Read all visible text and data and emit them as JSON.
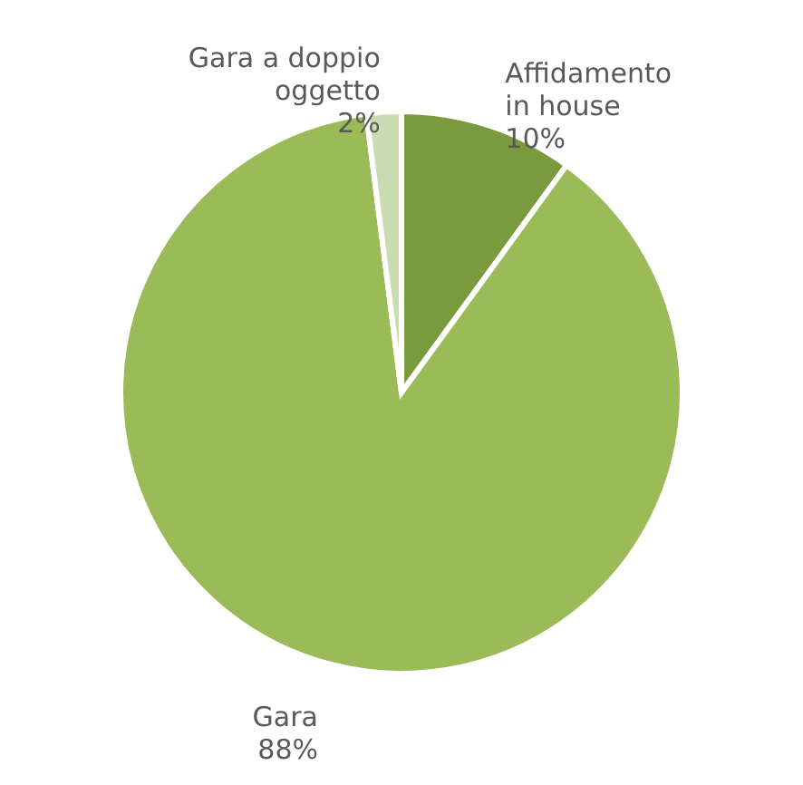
{
  "chart_data": {
    "type": "pie",
    "categories": [
      "Affidamento in house",
      "Gara",
      "Gara a doppio oggetto"
    ],
    "values": [
      10,
      88,
      2
    ],
    "value_labels": [
      "10%",
      "88%",
      "2%"
    ],
    "colors": [
      "#7a9a3e",
      "#9bbb59",
      "#c9dbb0"
    ]
  }
}
